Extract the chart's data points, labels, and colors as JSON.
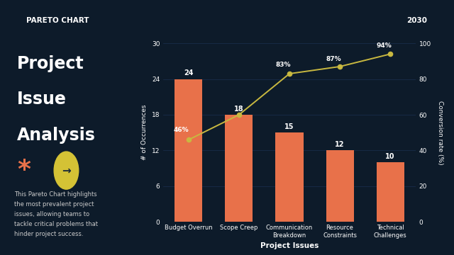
{
  "bg_color": "#0d1b2a",
  "header_text": "PARETO CHART",
  "header_year": "2030",
  "title_lines": [
    "Project",
    "Issue",
    "Analysis"
  ],
  "description": "This Pareto Chart highlights\nthe most prevalent project\nissues, allowing teams to\ntackle critical problems that\nhinder project success.",
  "categories": [
    "Budget Overrun",
    "Scope Creep",
    "Communication\nBreakdown",
    "Resource\nConstraints",
    "Technical\nChallenges"
  ],
  "values": [
    24,
    18,
    15,
    12,
    10
  ],
  "cumulative_pct": [
    46,
    60,
    83,
    87,
    94
  ],
  "pct_labels": [
    "46%",
    "",
    "83%",
    "87%",
    "94%"
  ],
  "bar_color": "#e8714a",
  "line_color": "#c8b840",
  "marker_color": "#c8b840",
  "text_color": "#ffffff",
  "grid_color": "#1a3050",
  "ylabel_left": "# of Occurrences",
  "ylabel_right": "Conversion rate (%)",
  "xlabel": "Project Issues",
  "ylim_left": [
    0,
    30
  ],
  "ylim_right": [
    0,
    100
  ],
  "yticks_left": [
    0,
    6,
    12,
    18,
    24,
    30
  ],
  "yticks_right": [
    0,
    20,
    40,
    60,
    80,
    100
  ],
  "axis_bg": "#0d1b2a",
  "tick_color": "#ffffff",
  "accent_color": "#e8714a",
  "arrow_circle_color": "#d4c235",
  "header_border_color": "#2a4a6a",
  "desc_color": "#cccccc"
}
